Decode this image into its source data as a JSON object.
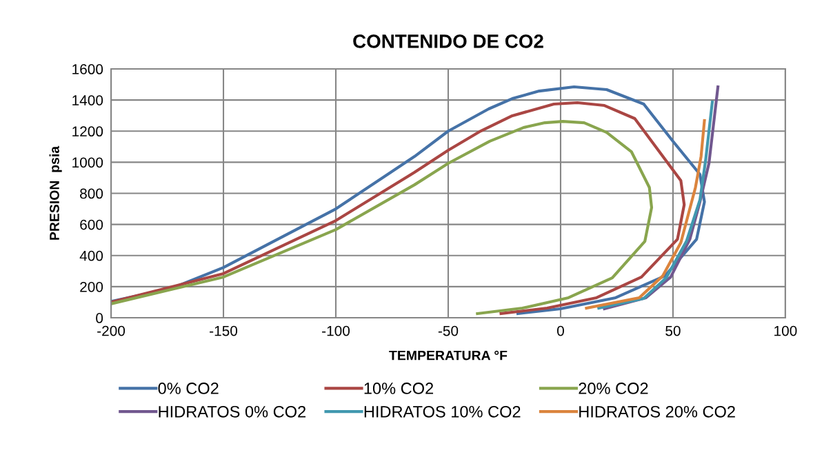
{
  "chart_data": {
    "type": "line",
    "title": "CONTENIDO DE CO2",
    "xlabel": "TEMPERATURA °F",
    "ylabel": "PRESION  psia",
    "xlim": [
      -200,
      100
    ],
    "xticks": [
      -200,
      -150,
      -100,
      -50,
      0,
      50,
      100
    ],
    "ylim": [
      0,
      1600
    ],
    "yticks": [
      0,
      200,
      400,
      600,
      800,
      1000,
      1200,
      1400,
      1600
    ],
    "grid": true,
    "legend": "bottom",
    "marker": "none",
    "line_style": "solid",
    "series": [
      {
        "name": "0% CO2",
        "color": "#4572a7",
        "x": [
          -200,
          -173,
          -150,
          -100,
          -65,
          -50,
          -32,
          -21.5,
          -9.5,
          6,
          20.5,
          37,
          50,
          62,
          64,
          60.5,
          46.5,
          24.5,
          0,
          -19
        ],
        "values": [
          105,
          190,
          323,
          700,
          1037,
          1200,
          1343,
          1409,
          1458,
          1485,
          1467,
          1374,
          1135,
          922,
          745,
          505,
          270,
          129,
          58,
          27
        ]
      },
      {
        "name": "10% CO2",
        "color": "#aa4643",
        "x": [
          -200,
          -150,
          -100,
          -65,
          -50,
          -35.5,
          -21.5,
          -3,
          7.5,
          19.5,
          33,
          53.5,
          55,
          52,
          36,
          16,
          -6,
          -26.5
        ],
        "values": [
          100,
          284,
          625,
          935,
          1077,
          1201,
          1299,
          1374,
          1383,
          1365,
          1281,
          882,
          727,
          505,
          262,
          129,
          62,
          27
        ]
      },
      {
        "name": "20% CO2",
        "color": "#89a54e",
        "x": [
          -200,
          -150,
          -100,
          -65,
          -50,
          -31.5,
          -16.5,
          -7,
          1,
          10.5,
          20.5,
          31.5,
          39.5,
          40.5,
          37.5,
          23,
          3.5,
          -17,
          -37
        ],
        "values": [
          90,
          262,
          567,
          855,
          993,
          1135,
          1223,
          1254,
          1263,
          1254,
          1192,
          1068,
          838,
          709,
          492,
          257,
          129,
          62,
          27
        ]
      },
      {
        "name": "HIDRATOS 0% CO2",
        "color": "#71588f",
        "x": [
          19.5,
          38,
          49,
          57.5,
          62,
          66,
          70
        ],
        "values": [
          58,
          129,
          262,
          505,
          745,
          993,
          1485
        ]
      },
      {
        "name": "HIDRATOS 10% CO2",
        "color": "#4198af",
        "x": [
          17,
          37,
          47,
          56,
          62,
          64.5,
          67.5
        ],
        "values": [
          62,
          124,
          257,
          492,
          758,
          1010,
          1387
        ]
      },
      {
        "name": "HIDRATOS 20% CO2",
        "color": "#db843d",
        "x": [
          11.5,
          35,
          45.5,
          53.5,
          60,
          62.5,
          64
        ],
        "values": [
          62,
          129,
          270,
          483,
          838,
          1037,
          1268
        ]
      }
    ]
  }
}
